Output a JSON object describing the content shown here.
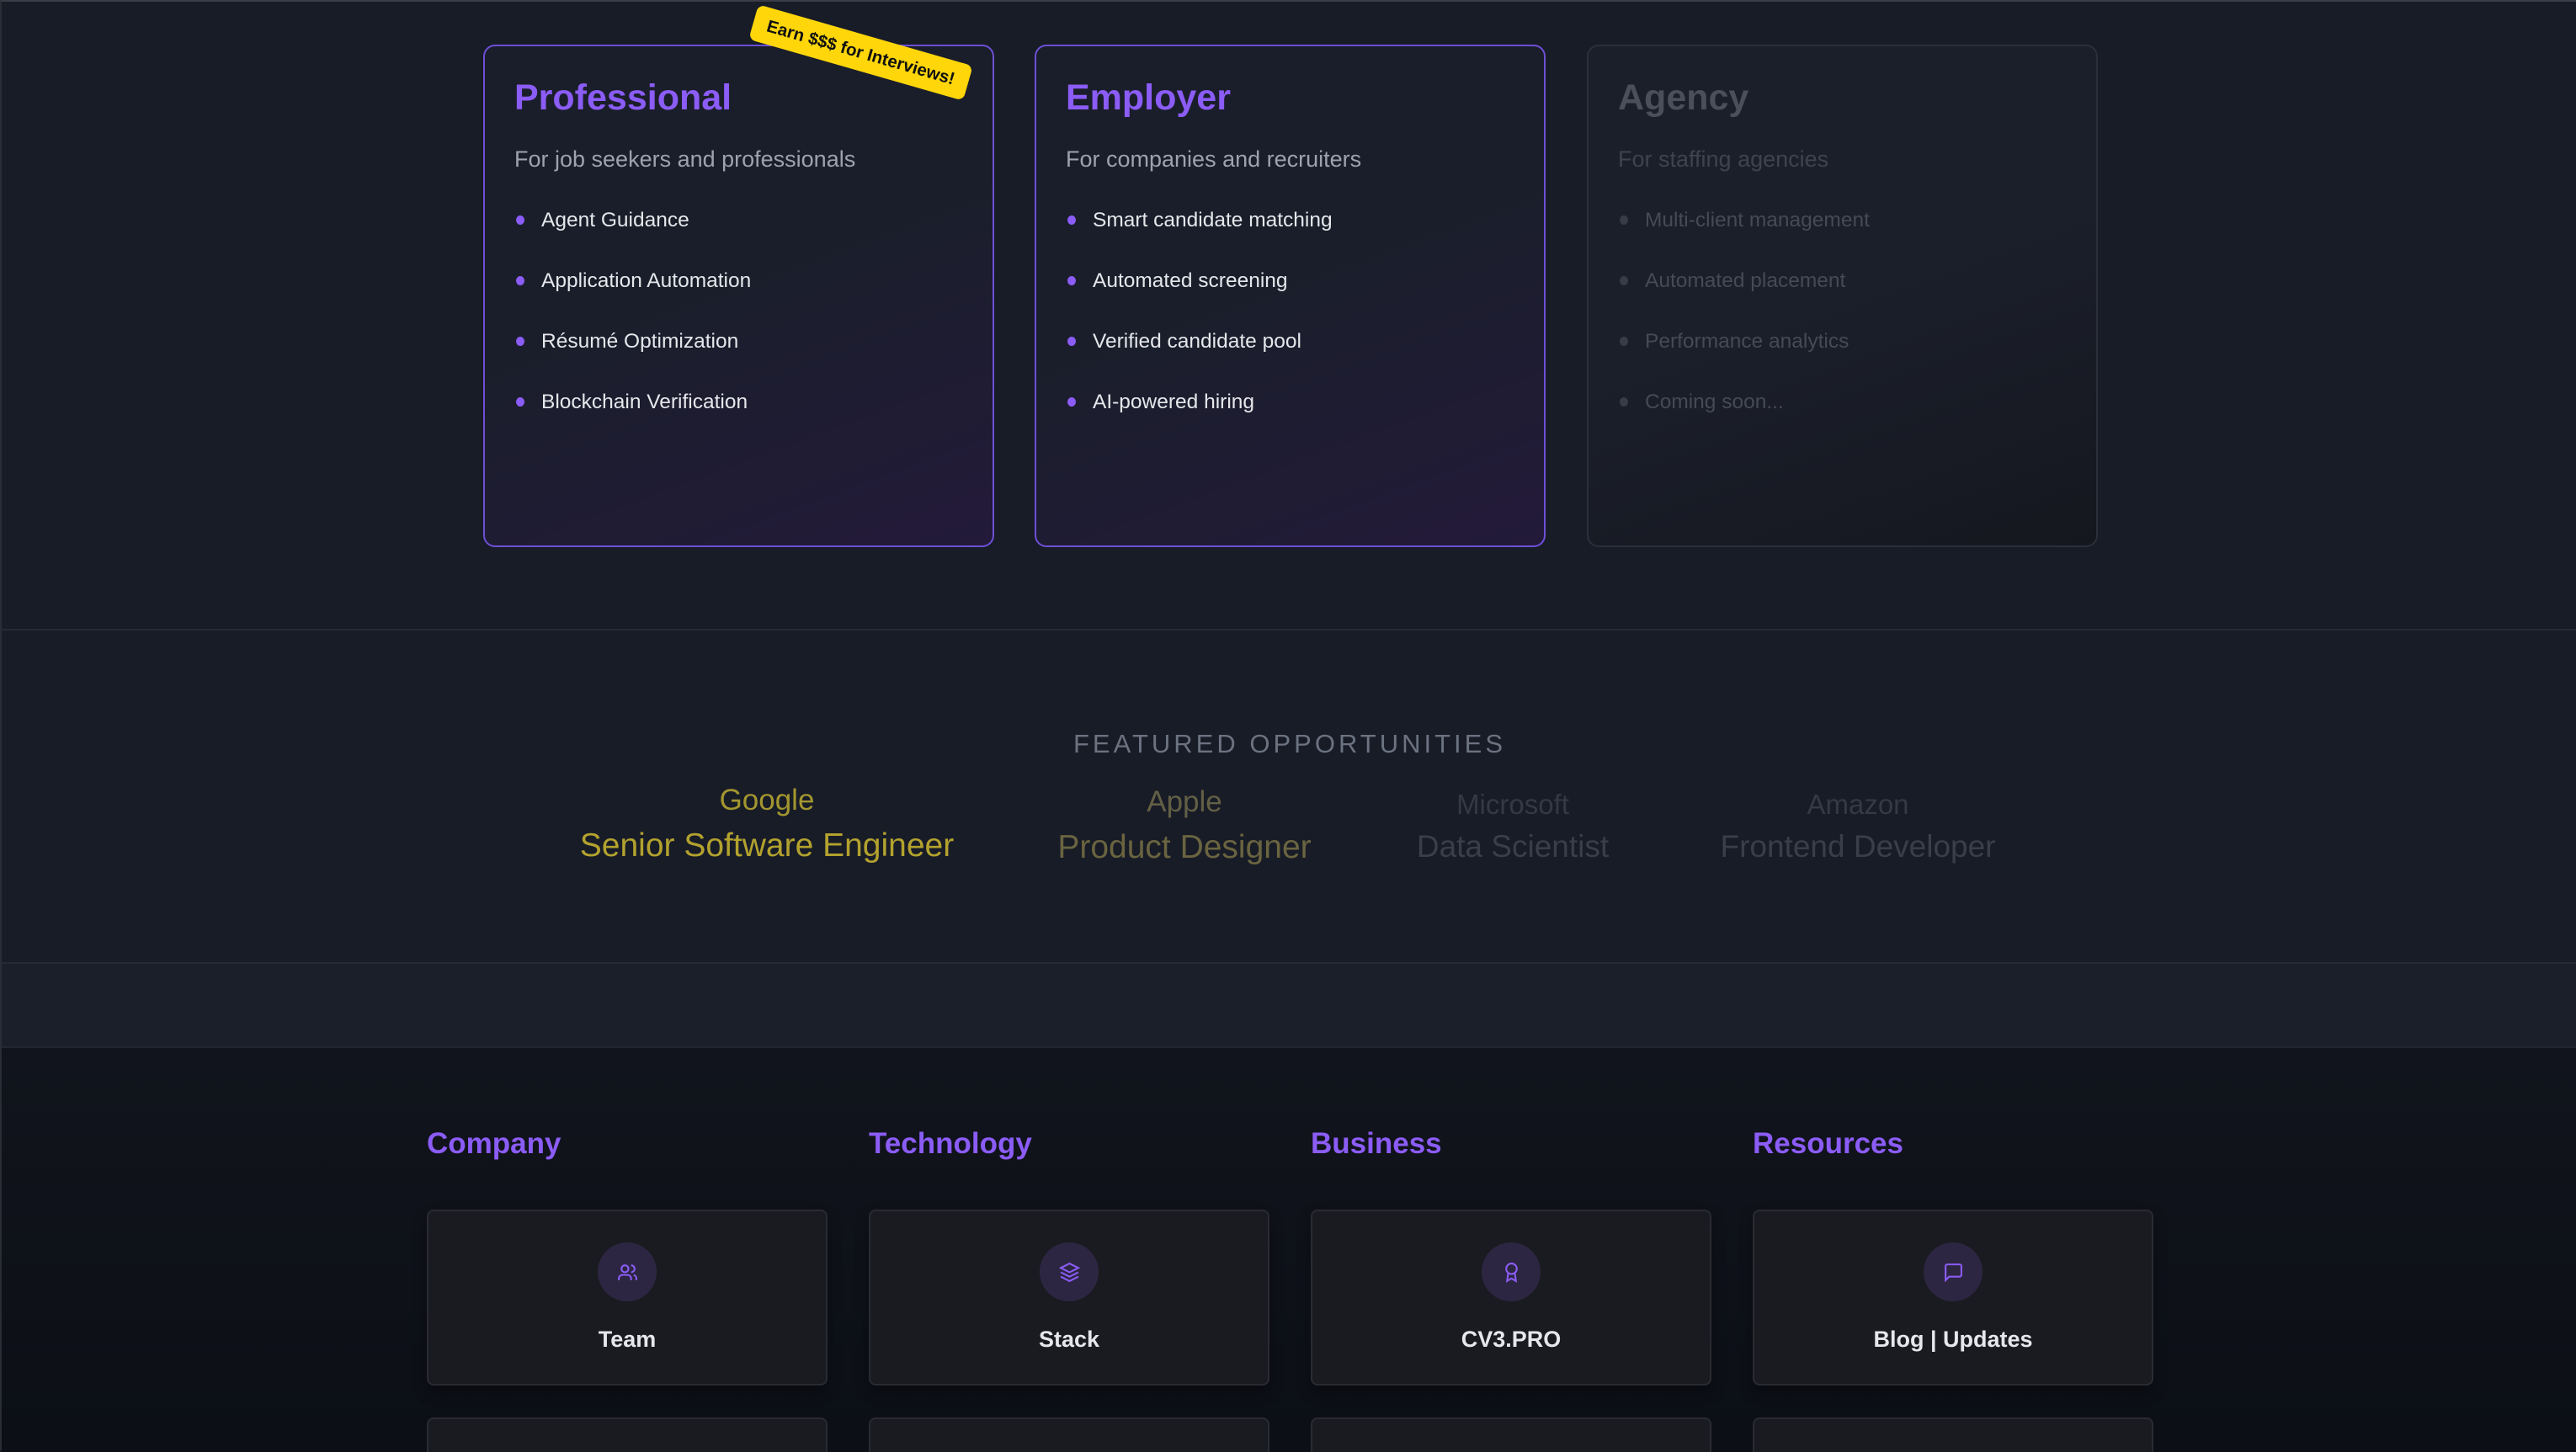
{
  "plans": [
    {
      "title": "Professional",
      "subtitle": "For job seekers and professionals",
      "features": [
        "Agent Guidance",
        "Application Automation",
        "Résumé Optimization",
        "Blockchain Verification"
      ],
      "badge": "Earn $$$ for Interviews!",
      "active": true
    },
    {
      "title": "Employer",
      "subtitle": "For companies and recruiters",
      "features": [
        "Smart candidate matching",
        "Automated screening",
        "Verified candidate pool",
        "AI-powered hiring"
      ],
      "active": true
    },
    {
      "title": "Agency",
      "subtitle": "For staffing agencies",
      "features": [
        "Multi-client management",
        "Automated placement",
        "Performance analytics",
        "Coming soon..."
      ],
      "active": false
    }
  ],
  "featured": {
    "heading": "FEATURED OPPORTUNITIES",
    "items": [
      {
        "company": "Google",
        "role": "Senior Software Engineer"
      },
      {
        "company": "Apple",
        "role": "Product Designer"
      },
      {
        "company": "Microsoft",
        "role": "Data Scientist"
      },
      {
        "company": "Amazon",
        "role": "Frontend Developer"
      }
    ]
  },
  "footer": {
    "columns": [
      {
        "heading": "Company",
        "link": "Team",
        "icon": "users-icon"
      },
      {
        "heading": "Technology",
        "link": "Stack",
        "icon": "layers-icon"
      },
      {
        "heading": "Business",
        "link": "CV3.PRO",
        "icon": "award-icon"
      },
      {
        "heading": "Resources",
        "link": "Blog | Updates",
        "icon": "message-square-icon"
      }
    ]
  },
  "colors": {
    "accent": "#8b5cf6",
    "badge": "#ffd60a",
    "background": "#181c27"
  }
}
